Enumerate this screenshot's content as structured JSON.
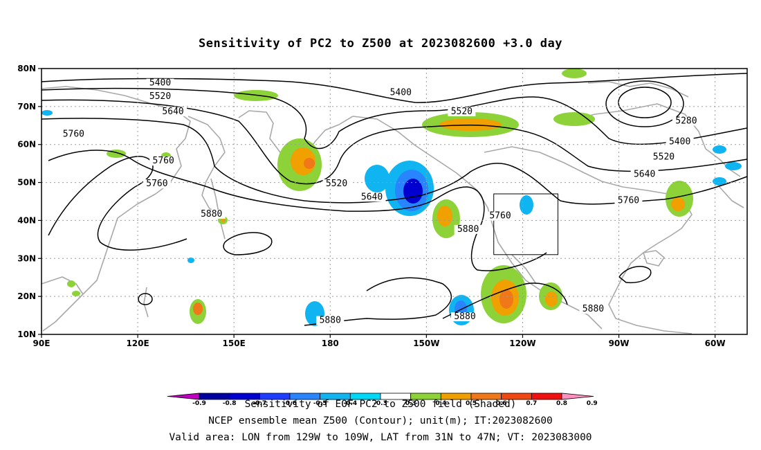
{
  "title": "Sensitivity of PC2 to Z500 at 2023082600 +3.0 day",
  "map": {
    "lat_ticks": [
      "10N",
      "20N",
      "30N",
      "40N",
      "50N",
      "60N",
      "70N",
      "80N"
    ],
    "lon_ticks": [
      "90E",
      "120E",
      "150E",
      "180",
      "150W",
      "120W",
      "90W",
      "60W"
    ],
    "lon_range": [
      90,
      310
    ],
    "lat_range": [
      10,
      80
    ],
    "gridlines": "dotted",
    "valid_box": {
      "lon": [
        231,
        251
      ],
      "lat": [
        31,
        47
      ]
    }
  },
  "contour_labels": [
    {
      "text": "5400",
      "lon": 127,
      "lat": 75.5
    },
    {
      "text": "5400",
      "lon": 202,
      "lat": 73
    },
    {
      "text": "5520",
      "lon": 127,
      "lat": 72
    },
    {
      "text": "5640",
      "lon": 131,
      "lat": 68
    },
    {
      "text": "5520",
      "lon": 221,
      "lat": 68
    },
    {
      "text": "5760",
      "lon": 100,
      "lat": 62
    },
    {
      "text": "5760",
      "lon": 128,
      "lat": 55
    },
    {
      "text": "5760",
      "lon": 126,
      "lat": 49
    },
    {
      "text": "5520",
      "lon": 182,
      "lat": 49
    },
    {
      "text": "5640",
      "lon": 193,
      "lat": 45.5
    },
    {
      "text": "5880",
      "lon": 143,
      "lat": 41
    },
    {
      "text": "5760",
      "lon": 233,
      "lat": 40.5
    },
    {
      "text": "5880",
      "lon": 223,
      "lat": 37
    },
    {
      "text": "5280",
      "lon": 291,
      "lat": 65.5
    },
    {
      "text": "5400",
      "lon": 289,
      "lat": 60
    },
    {
      "text": "5520",
      "lon": 284,
      "lat": 56
    },
    {
      "text": "5640",
      "lon": 278,
      "lat": 51.5
    },
    {
      "text": "5760",
      "lon": 273,
      "lat": 44.5
    },
    {
      "text": "5880",
      "lon": 180,
      "lat": 13
    },
    {
      "text": "5880",
      "lon": 222,
      "lat": 14
    },
    {
      "text": "5880",
      "lon": 262,
      "lat": 16
    }
  ],
  "colorbar": {
    "colors": [
      "#c000c0",
      "#0000a0",
      "#0000d0",
      "#1e3cff",
      "#2884ff",
      "#10b4f0",
      "#00d8f8",
      "#ffffff",
      "#8cd238",
      "#f0a000",
      "#f07818",
      "#f04810",
      "#f01010",
      "#ff90c0"
    ],
    "labels": [
      "-0.9",
      "-0.8",
      "-0.7",
      "-0.6",
      "-0.5",
      "-0.4",
      "-0.3",
      "0.3",
      "0.4",
      "0.5",
      "0.6",
      "0.7",
      "0.8",
      "0.9"
    ]
  },
  "footer": {
    "line1": "Sensitivity of EOF PC2 to Z500 field (Shaded)",
    "line2": "NCEP ensemble mean Z500 (Contour); unit(m); IT:2023082600",
    "line3": "Valid area: LON from 129W to 109W, LAT from 31N to 47N; VT: 2023083000"
  }
}
